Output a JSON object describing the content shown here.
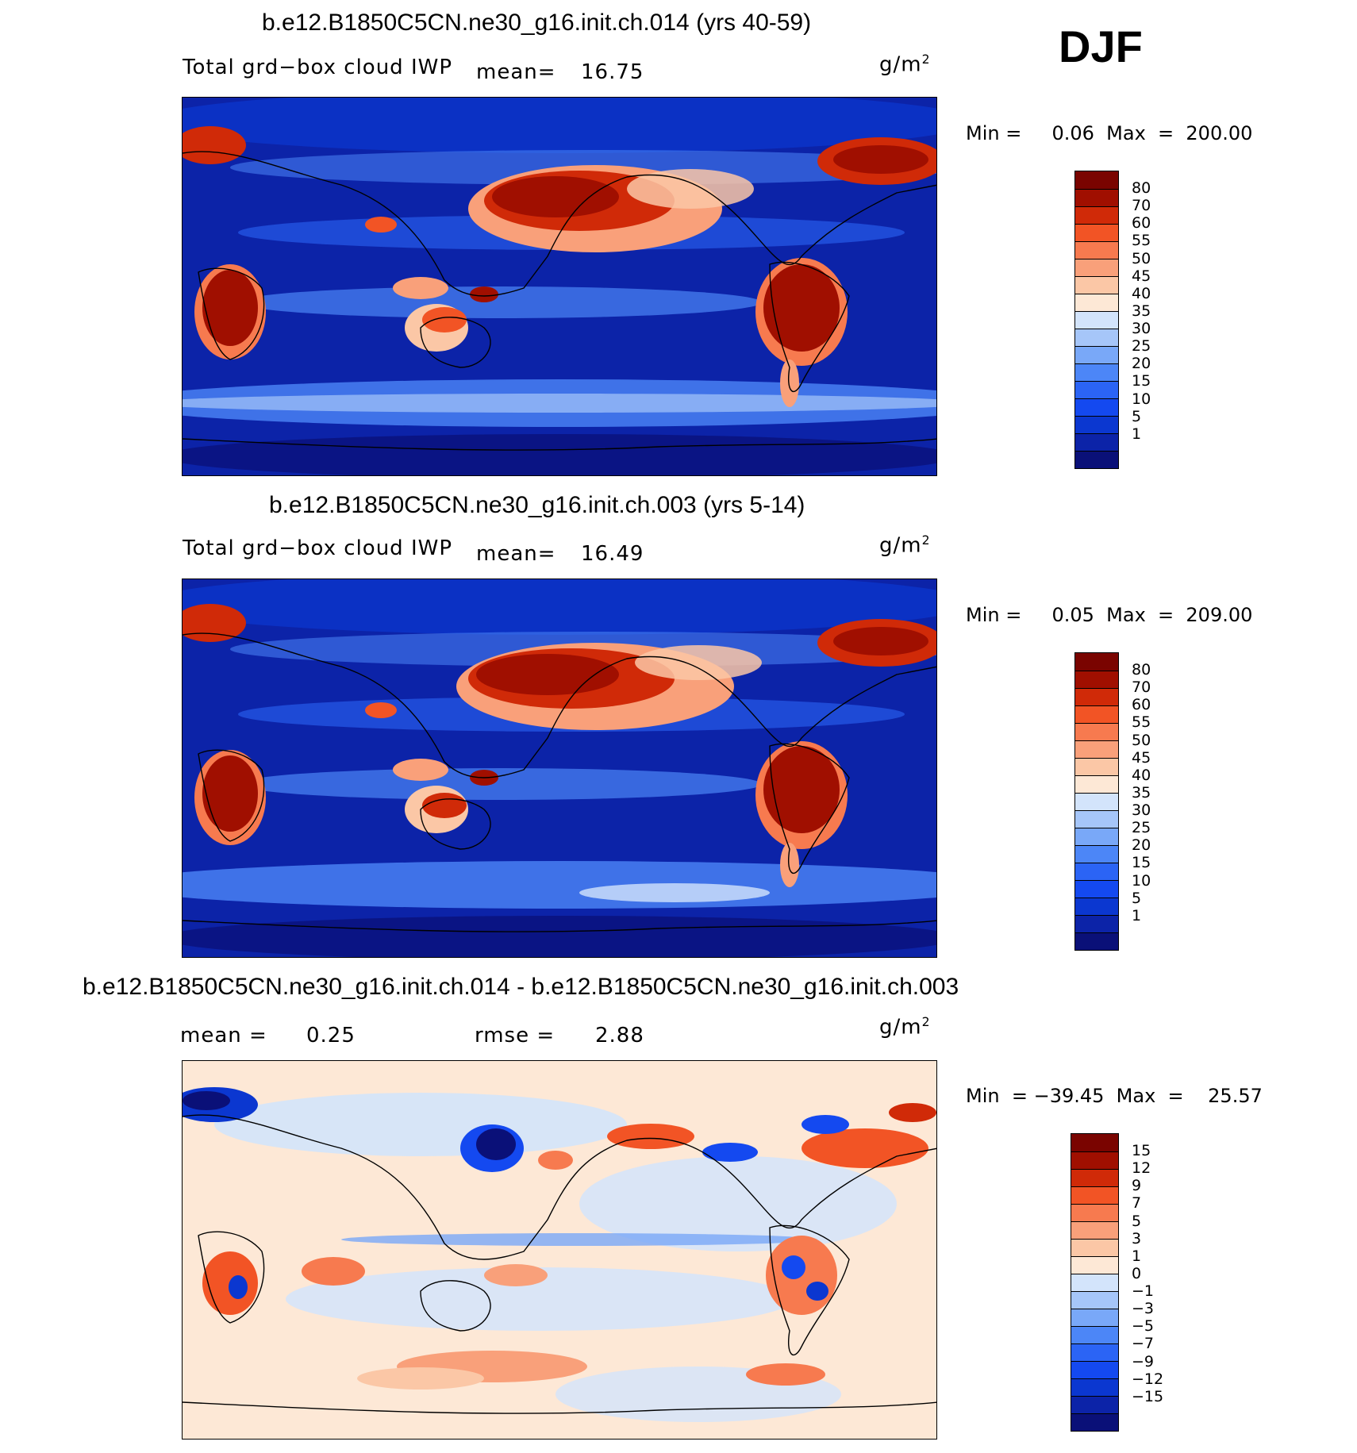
{
  "season": "DJF",
  "units": "g/m",
  "units_sup": "2",
  "panels": [
    {
      "title": "b.e12.B1850C5CN.ne30_g16.init.ch.014 (yrs 40-59)",
      "variable": "Total grd−box cloud IWP",
      "stat_label": "mean=",
      "stat_value": "16.75",
      "minmax": "Min =     0.06  Max  =  200.00",
      "colorbar_labels": [
        "80",
        "70",
        "60",
        "55",
        "50",
        "45",
        "40",
        "35",
        "30",
        "25",
        "20",
        "15",
        "10",
        "5",
        "1"
      ]
    },
    {
      "title": "b.e12.B1850C5CN.ne30_g16.init.ch.003 (yrs 5-14)",
      "variable": "Total grd−box cloud IWP",
      "stat_label": "mean=",
      "stat_value": "16.49",
      "minmax": "Min =     0.05  Max  =  209.00",
      "colorbar_labels": [
        "80",
        "70",
        "60",
        "55",
        "50",
        "45",
        "40",
        "35",
        "30",
        "25",
        "20",
        "15",
        "10",
        "5",
        "1"
      ]
    },
    {
      "title": "b.e12.B1850C5CN.ne30_g16.init.ch.014 - b.e12.B1850C5CN.ne30_g16.init.ch.003",
      "mean_label": "mean =",
      "mean_value": "0.25",
      "rmse_label": "rmse =",
      "rmse_value": "2.88",
      "minmax": "Min  = −39.45  Max  =    25.57",
      "colorbar_labels": [
        "15",
        "12",
        "9",
        "7",
        "5",
        "3",
        "1",
        "0",
        "−1",
        "−3",
        "−5",
        "−7",
        "−9",
        "−12",
        "−15"
      ]
    }
  ],
  "colors": {
    "abs_scale": [
      "#0a1078",
      "#0c23a8",
      "#0b37d0",
      "#1449f0",
      "#2b64f5",
      "#4c86f7",
      "#79a8f8",
      "#a6c6f9",
      "#d3e4fb",
      "#fde8d6",
      "#fbc7a6",
      "#f9a07a",
      "#f77a4f",
      "#f25425",
      "#d02a08",
      "#a00f00",
      "#7a0400"
    ],
    "diff_scale": [
      "#0a1078",
      "#0c23a8",
      "#0b37d0",
      "#1449f0",
      "#2b64f5",
      "#4c86f7",
      "#79a8f8",
      "#a6c6f9",
      "#d3e4fb",
      "#fde8d6",
      "#fbc7a6",
      "#f9a07a",
      "#f77a4f",
      "#f25425",
      "#d02a08",
      "#a00f00",
      "#7a0400"
    ]
  }
}
